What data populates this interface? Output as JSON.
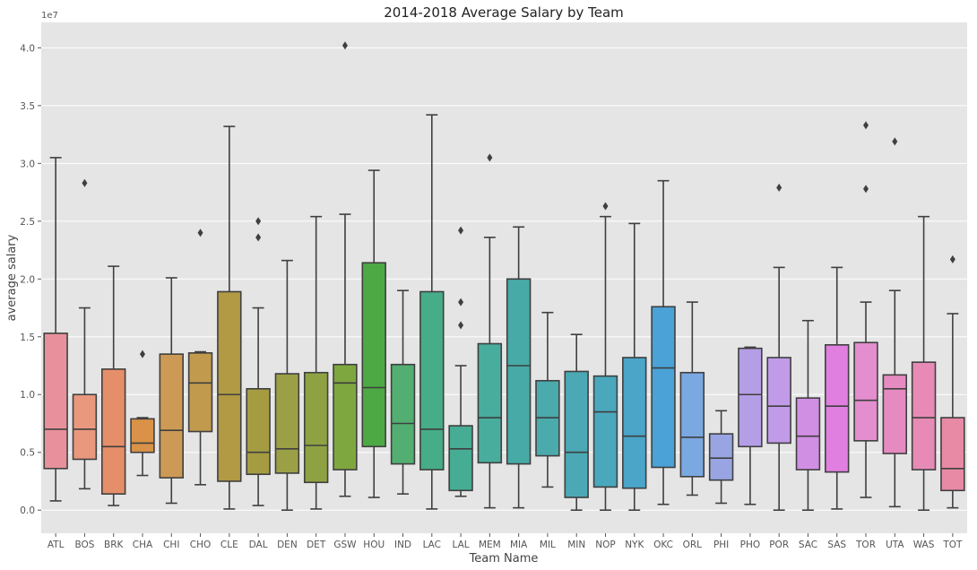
{
  "chart_data": {
    "type": "box",
    "title": "2014-2018 Average Salary by Team",
    "xlabel": "Team Name",
    "ylabel": "average salary",
    "y_exponent_label": "1e7",
    "y_scale_factor": 10000000,
    "ylim": [
      -2000000,
      42200000
    ],
    "yticks": [
      0,
      5000000,
      10000000,
      15000000,
      20000000,
      25000000,
      30000000,
      35000000,
      40000000
    ],
    "ytick_labels": [
      "0.0",
      "0.5",
      "1.0",
      "1.5",
      "2.0",
      "2.5",
      "3.0",
      "3.5",
      "4.0"
    ],
    "grid": true,
    "background": "#e5e5e5",
    "box_edge_color": "#3f3f3f",
    "series": [
      {
        "team": "ATL",
        "color": "#e8919c",
        "whisker_low": 800000,
        "q1": 3600000,
        "median": 7000000,
        "q3": 15300000,
        "whisker_high": 30500000,
        "outliers": []
      },
      {
        "team": "BOS",
        "color": "#e9987e",
        "whisker_low": 1850000,
        "q1": 4400000,
        "median": 7000000,
        "q3": 10000000,
        "whisker_high": 17500000,
        "outliers": [
          28300000
        ]
      },
      {
        "team": "BRK",
        "color": "#e58f6a",
        "whisker_low": 400000,
        "q1": 1400000,
        "median": 5500000,
        "q3": 12200000,
        "whisker_high": 21100000,
        "outliers": []
      },
      {
        "team": "CHA",
        "color": "#d99247",
        "whisker_low": 3000000,
        "q1": 5000000,
        "median": 5800000,
        "q3": 7900000,
        "whisker_high": 8000000,
        "outliers": [
          13500000
        ]
      },
      {
        "team": "CHI",
        "color": "#cd9a55",
        "whisker_low": 600000,
        "q1": 2800000,
        "median": 6900000,
        "q3": 13500000,
        "whisker_high": 20100000,
        "outliers": []
      },
      {
        "team": "CHO",
        "color": "#c29a4e",
        "whisker_low": 2200000,
        "q1": 6800000,
        "median": 11000000,
        "q3": 13600000,
        "whisker_high": 13700000,
        "outliers": [
          24000000
        ]
      },
      {
        "team": "CLE",
        "color": "#b19a43",
        "whisker_low": 100000,
        "q1": 2500000,
        "median": 10000000,
        "q3": 18900000,
        "whisker_high": 33200000,
        "outliers": []
      },
      {
        "team": "DAL",
        "color": "#a59c42",
        "whisker_low": 400000,
        "q1": 3100000,
        "median": 5000000,
        "q3": 10500000,
        "whisker_high": 17500000,
        "outliers": [
          23600000,
          25000000
        ]
      },
      {
        "team": "DEN",
        "color": "#9ba046",
        "whisker_low": 0,
        "q1": 3200000,
        "median": 5300000,
        "q3": 11800000,
        "whisker_high": 21600000,
        "outliers": []
      },
      {
        "team": "DET",
        "color": "#8fa243",
        "whisker_low": 100000,
        "q1": 2400000,
        "median": 5600000,
        "q3": 11900000,
        "whisker_high": 25400000,
        "outliers": []
      },
      {
        "team": "GSW",
        "color": "#7fa73f",
        "whisker_low": 1200000,
        "q1": 3500000,
        "median": 11000000,
        "q3": 12600000,
        "whisker_high": 25600000,
        "outliers": [
          40200000
        ]
      },
      {
        "team": "HOU",
        "color": "#4da944",
        "whisker_low": 1100000,
        "q1": 5500000,
        "median": 10600000,
        "q3": 21400000,
        "whisker_high": 29400000,
        "outliers": []
      },
      {
        "team": "IND",
        "color": "#52ae71",
        "whisker_low": 1400000,
        "q1": 4000000,
        "median": 7500000,
        "q3": 12600000,
        "whisker_high": 19000000,
        "outliers": []
      },
      {
        "team": "LAC",
        "color": "#46ad88",
        "whisker_low": 100000,
        "q1": 3500000,
        "median": 7000000,
        "q3": 18900000,
        "whisker_high": 34200000,
        "outliers": []
      },
      {
        "team": "LAL",
        "color": "#47ac94",
        "whisker_low": 1200000,
        "q1": 1700000,
        "median": 5300000,
        "q3": 7300000,
        "whisker_high": 12500000,
        "outliers": [
          16000000,
          18000000,
          24200000
        ]
      },
      {
        "team": "MEM",
        "color": "#49ad9e",
        "whisker_low": 200000,
        "q1": 4100000,
        "median": 8000000,
        "q3": 14400000,
        "whisker_high": 23600000,
        "outliers": [
          30500000
        ]
      },
      {
        "team": "MIA",
        "color": "#47aaa7",
        "whisker_low": 200000,
        "q1": 4000000,
        "median": 12500000,
        "q3": 20000000,
        "whisker_high": 24500000,
        "outliers": []
      },
      {
        "team": "MIL",
        "color": "#4aaaac",
        "whisker_low": 2000000,
        "q1": 4700000,
        "median": 8000000,
        "q3": 11200000,
        "whisker_high": 17100000,
        "outliers": []
      },
      {
        "team": "MIN",
        "color": "#4aa9b4",
        "whisker_low": 0,
        "q1": 1100000,
        "median": 5000000,
        "q3": 12000000,
        "whisker_high": 15200000,
        "outliers": []
      },
      {
        "team": "NOP",
        "color": "#4aa8bd",
        "whisker_low": 0,
        "q1": 2000000,
        "median": 8500000,
        "q3": 11600000,
        "whisker_high": 25400000,
        "outliers": [
          26300000
        ]
      },
      {
        "team": "NYK",
        "color": "#4aa5c8",
        "whisker_low": 0,
        "q1": 1900000,
        "median": 6400000,
        "q3": 13200000,
        "whisker_high": 24800000,
        "outliers": []
      },
      {
        "team": "OKC",
        "color": "#4aa2d6",
        "whisker_low": 500000,
        "q1": 3700000,
        "median": 12300000,
        "q3": 17600000,
        "whisker_high": 28500000,
        "outliers": []
      },
      {
        "team": "ORL",
        "color": "#7aa8e0",
        "whisker_low": 1300000,
        "q1": 2900000,
        "median": 6300000,
        "q3": 11900000,
        "whisker_high": 18000000,
        "outliers": []
      },
      {
        "team": "PHI",
        "color": "#98a5e2",
        "whisker_low": 600000,
        "q1": 2600000,
        "median": 4500000,
        "q3": 6600000,
        "whisker_high": 8600000,
        "outliers": []
      },
      {
        "team": "PHO",
        "color": "#b49ee6",
        "whisker_low": 500000,
        "q1": 5500000,
        "median": 10000000,
        "q3": 14000000,
        "whisker_high": 14100000,
        "outliers": []
      },
      {
        "team": "POR",
        "color": "#c19be7",
        "whisker_low": 0,
        "q1": 5800000,
        "median": 9000000,
        "q3": 13200000,
        "whisker_high": 21000000,
        "outliers": [
          27900000
        ]
      },
      {
        "team": "SAC",
        "color": "#d18fe4",
        "whisker_low": 0,
        "q1": 3500000,
        "median": 6400000,
        "q3": 9700000,
        "whisker_high": 16400000,
        "outliers": []
      },
      {
        "team": "SAS",
        "color": "#e07fe0",
        "whisker_low": 100000,
        "q1": 3300000,
        "median": 9000000,
        "q3": 14300000,
        "whisker_high": 21000000,
        "outliers": []
      },
      {
        "team": "TOR",
        "color": "#e48dcf",
        "whisker_low": 1100000,
        "q1": 6000000,
        "median": 9500000,
        "q3": 14500000,
        "whisker_high": 18000000,
        "outliers": [
          27800000,
          33300000
        ]
      },
      {
        "team": "UTA",
        "color": "#e68bc2",
        "whisker_low": 300000,
        "q1": 4900000,
        "median": 10500000,
        "q3": 11700000,
        "whisker_high": 19000000,
        "outliers": [
          31900000
        ]
      },
      {
        "team": "WAS",
        "color": "#e78bb6",
        "whisker_low": 0,
        "q1": 3500000,
        "median": 8000000,
        "q3": 12800000,
        "whisker_high": 25400000,
        "outliers": []
      },
      {
        "team": "TOT",
        "color": "#e88aa6",
        "whisker_low": 200000,
        "q1": 1700000,
        "median": 3600000,
        "q3": 8000000,
        "whisker_high": 17000000,
        "outliers": [
          21700000
        ]
      }
    ]
  }
}
